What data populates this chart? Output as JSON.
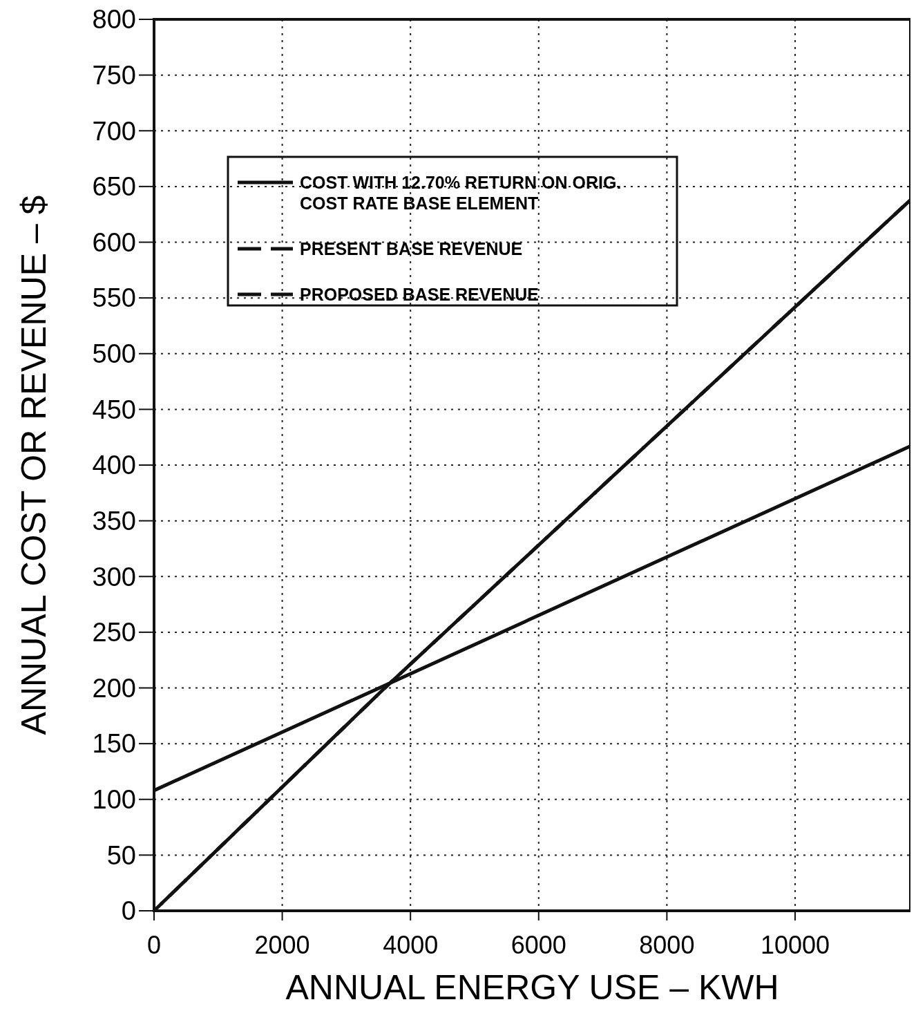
{
  "chart_data": {
    "type": "line",
    "xlabel": "ANNUAL ENERGY USE – KWH",
    "ylabel": "ANNUAL COST OR REVENUE – $",
    "xlim": [
      0,
      11800
    ],
    "xticks": [
      0,
      2000,
      4000,
      6000,
      8000,
      10000
    ],
    "ylim": [
      0,
      800
    ],
    "yticks": [
      0,
      50,
      100,
      150,
      200,
      250,
      300,
      350,
      400,
      450,
      500,
      550,
      600,
      650,
      700,
      750,
      800
    ],
    "grid": true,
    "legend": "top",
    "series": [
      {
        "name": "COST WITH 12.70% RETURN ON ORIG. COST RATE BASE ELEMENT",
        "color": "#111111",
        "line_style": "solid",
        "x": [
          0,
          11800
        ],
        "values": [
          108,
          417
        ]
      },
      {
        "name": "PRESENT BASE REVENUE",
        "color": "#111111",
        "line_style": "dashed",
        "x": [
          0,
          3600,
          11800
        ],
        "values": [
          0,
          200,
          638
        ]
      },
      {
        "name": "PROPOSED BASE REVENUE",
        "color": "#111111",
        "line_style": "dashed",
        "x": [
          0,
          3600,
          11800
        ],
        "values": [
          0,
          200,
          638
        ]
      }
    ]
  }
}
